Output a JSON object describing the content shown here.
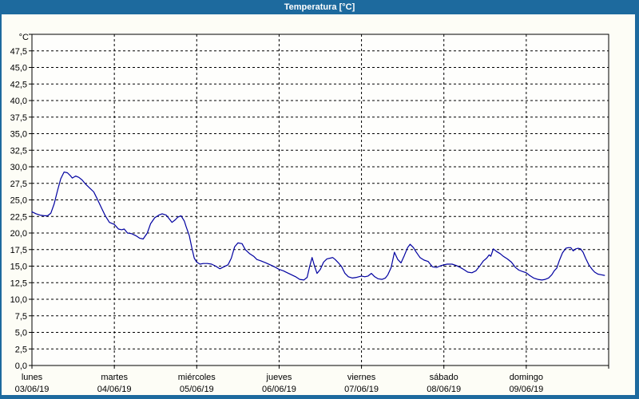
{
  "window": {
    "title": "Temperatura [°C]"
  },
  "colors": {
    "titlebar": "#1D6A9E",
    "frame": "#1D6A9E",
    "background": "#FDFDF6",
    "plot_background": "#FEFEFC",
    "grid": "#000000",
    "axis": "#000000",
    "series": "#0000A0"
  },
  "chart_data": {
    "type": "line",
    "title": "Temperatura [°C]",
    "ylabel": "°C",
    "ylim": [
      0,
      50
    ],
    "y_tick_step": 2.5,
    "y_tick_labels": [
      "47,5",
      "45,0",
      "42,5",
      "40,0",
      "37,5",
      "35,0",
      "32,5",
      "30,0",
      "27,5",
      "25,0",
      "22,5",
      "20,0",
      "17,5",
      "15,0",
      "12,5",
      "10,0",
      "7,5",
      "5,0",
      "2,5",
      "0,0"
    ],
    "x_range_days": [
      0,
      7
    ],
    "x_ticks": [
      {
        "name": "lunes",
        "date": "03/06/19"
      },
      {
        "name": "martes",
        "date": "04/06/19"
      },
      {
        "name": "miércoles",
        "date": "05/06/19"
      },
      {
        "name": "jueves",
        "date": "06/06/19"
      },
      {
        "name": "viernes",
        "date": "07/06/19"
      },
      {
        "name": "sábado",
        "date": "08/06/19"
      },
      {
        "name": "domingo",
        "date": "09/06/19"
      }
    ],
    "grid": "dashed",
    "legend": "none",
    "series": [
      {
        "name": "Temperatura",
        "color": "#0000A0",
        "points": [
          [
            0.0,
            23.2
          ],
          [
            0.05,
            22.9
          ],
          [
            0.1,
            22.7
          ],
          [
            0.15,
            22.6
          ],
          [
            0.19,
            22.6
          ],
          [
            0.23,
            23.0
          ],
          [
            0.27,
            24.4
          ],
          [
            0.31,
            26.4
          ],
          [
            0.35,
            28.2
          ],
          [
            0.39,
            29.2
          ],
          [
            0.43,
            29.1
          ],
          [
            0.47,
            28.6
          ],
          [
            0.49,
            28.3
          ],
          [
            0.53,
            28.6
          ],
          [
            0.57,
            28.4
          ],
          [
            0.61,
            28.0
          ],
          [
            0.65,
            27.4
          ],
          [
            0.7,
            26.8
          ],
          [
            0.75,
            26.2
          ],
          [
            0.79,
            25.2
          ],
          [
            0.84,
            23.9
          ],
          [
            0.89,
            22.6
          ],
          [
            0.94,
            21.6
          ],
          [
            1.0,
            21.3
          ],
          [
            1.05,
            20.6
          ],
          [
            1.09,
            20.5
          ],
          [
            1.12,
            20.6
          ],
          [
            1.16,
            20.0
          ],
          [
            1.21,
            19.9
          ],
          [
            1.26,
            19.6
          ],
          [
            1.31,
            19.2
          ],
          [
            1.35,
            19.1
          ],
          [
            1.4,
            20.0
          ],
          [
            1.44,
            21.4
          ],
          [
            1.49,
            22.3
          ],
          [
            1.54,
            22.7
          ],
          [
            1.58,
            22.9
          ],
          [
            1.63,
            22.7
          ],
          [
            1.67,
            22.1
          ],
          [
            1.7,
            21.6
          ],
          [
            1.74,
            22.0
          ],
          [
            1.77,
            22.4
          ],
          [
            1.81,
            22.6
          ],
          [
            1.85,
            21.8
          ],
          [
            1.87,
            21.0
          ],
          [
            1.91,
            19.6
          ],
          [
            1.94,
            17.8
          ],
          [
            1.97,
            16.2
          ],
          [
            2.0,
            15.6
          ],
          [
            2.04,
            15.3
          ],
          [
            2.08,
            15.4
          ],
          [
            2.13,
            15.4
          ],
          [
            2.18,
            15.3
          ],
          [
            2.23,
            15.0
          ],
          [
            2.28,
            14.6
          ],
          [
            2.33,
            14.9
          ],
          [
            2.38,
            15.2
          ],
          [
            2.42,
            16.2
          ],
          [
            2.46,
            17.9
          ],
          [
            2.5,
            18.5
          ],
          [
            2.55,
            18.4
          ],
          [
            2.59,
            17.5
          ],
          [
            2.64,
            16.9
          ],
          [
            2.69,
            16.5
          ],
          [
            2.73,
            16.0
          ],
          [
            2.78,
            15.8
          ],
          [
            2.84,
            15.5
          ],
          [
            2.91,
            15.1
          ],
          [
            2.96,
            14.8
          ],
          [
            3.0,
            14.5
          ],
          [
            3.05,
            14.3
          ],
          [
            3.1,
            14.0
          ],
          [
            3.15,
            13.7
          ],
          [
            3.2,
            13.4
          ],
          [
            3.25,
            13.0
          ],
          [
            3.3,
            12.9
          ],
          [
            3.34,
            13.3
          ],
          [
            3.37,
            14.9
          ],
          [
            3.4,
            16.3
          ],
          [
            3.43,
            15.0
          ],
          [
            3.46,
            13.9
          ],
          [
            3.5,
            14.5
          ],
          [
            3.54,
            15.6
          ],
          [
            3.58,
            16.1
          ],
          [
            3.62,
            16.2
          ],
          [
            3.65,
            16.3
          ],
          [
            3.68,
            16.0
          ],
          [
            3.72,
            15.5
          ],
          [
            3.76,
            14.9
          ],
          [
            3.8,
            13.9
          ],
          [
            3.84,
            13.4
          ],
          [
            3.89,
            13.2
          ],
          [
            3.94,
            13.3
          ],
          [
            4.0,
            13.5
          ],
          [
            4.04,
            13.4
          ],
          [
            4.08,
            13.5
          ],
          [
            4.12,
            13.9
          ],
          [
            4.16,
            13.4
          ],
          [
            4.2,
            13.1
          ],
          [
            4.25,
            13.0
          ],
          [
            4.29,
            13.2
          ],
          [
            4.32,
            13.7
          ],
          [
            4.36,
            14.8
          ],
          [
            4.4,
            17.1
          ],
          [
            4.44,
            16.0
          ],
          [
            4.48,
            15.5
          ],
          [
            4.52,
            16.6
          ],
          [
            4.56,
            17.8
          ],
          [
            4.59,
            18.3
          ],
          [
            4.63,
            17.8
          ],
          [
            4.66,
            17.2
          ],
          [
            4.71,
            16.3
          ],
          [
            4.76,
            15.9
          ],
          [
            4.81,
            15.7
          ],
          [
            4.86,
            14.9
          ],
          [
            4.91,
            14.8
          ],
          [
            4.95,
            15.0
          ],
          [
            5.0,
            15.2
          ],
          [
            5.04,
            15.3
          ],
          [
            5.1,
            15.3
          ],
          [
            5.15,
            15.1
          ],
          [
            5.2,
            14.8
          ],
          [
            5.24,
            14.5
          ],
          [
            5.29,
            14.1
          ],
          [
            5.34,
            14.0
          ],
          [
            5.39,
            14.3
          ],
          [
            5.44,
            15.1
          ],
          [
            5.48,
            15.8
          ],
          [
            5.52,
            16.2
          ],
          [
            5.55,
            16.7
          ],
          [
            5.57,
            16.5
          ],
          [
            5.6,
            17.6
          ],
          [
            5.64,
            17.2
          ],
          [
            5.68,
            16.9
          ],
          [
            5.72,
            16.5
          ],
          [
            5.77,
            16.1
          ],
          [
            5.82,
            15.6
          ],
          [
            5.87,
            14.8
          ],
          [
            5.91,
            14.4
          ],
          [
            5.95,
            14.2
          ],
          [
            6.0,
            14.0
          ],
          [
            6.04,
            13.6
          ],
          [
            6.09,
            13.2
          ],
          [
            6.14,
            13.0
          ],
          [
            6.19,
            12.9
          ],
          [
            6.23,
            13.0
          ],
          [
            6.27,
            13.2
          ],
          [
            6.31,
            13.7
          ],
          [
            6.34,
            14.3
          ],
          [
            6.37,
            14.7
          ],
          [
            6.4,
            15.8
          ],
          [
            6.44,
            17.0
          ],
          [
            6.48,
            17.7
          ],
          [
            6.51,
            17.8
          ],
          [
            6.54,
            17.8
          ],
          [
            6.57,
            17.3
          ],
          [
            6.6,
            17.6
          ],
          [
            6.63,
            17.7
          ],
          [
            6.66,
            17.6
          ],
          [
            6.69,
            17.1
          ],
          [
            6.72,
            16.2
          ],
          [
            6.76,
            15.2
          ],
          [
            6.8,
            14.5
          ],
          [
            6.83,
            14.1
          ],
          [
            6.87,
            13.8
          ],
          [
            6.91,
            13.7
          ],
          [
            6.95,
            13.6
          ]
        ]
      }
    ]
  }
}
